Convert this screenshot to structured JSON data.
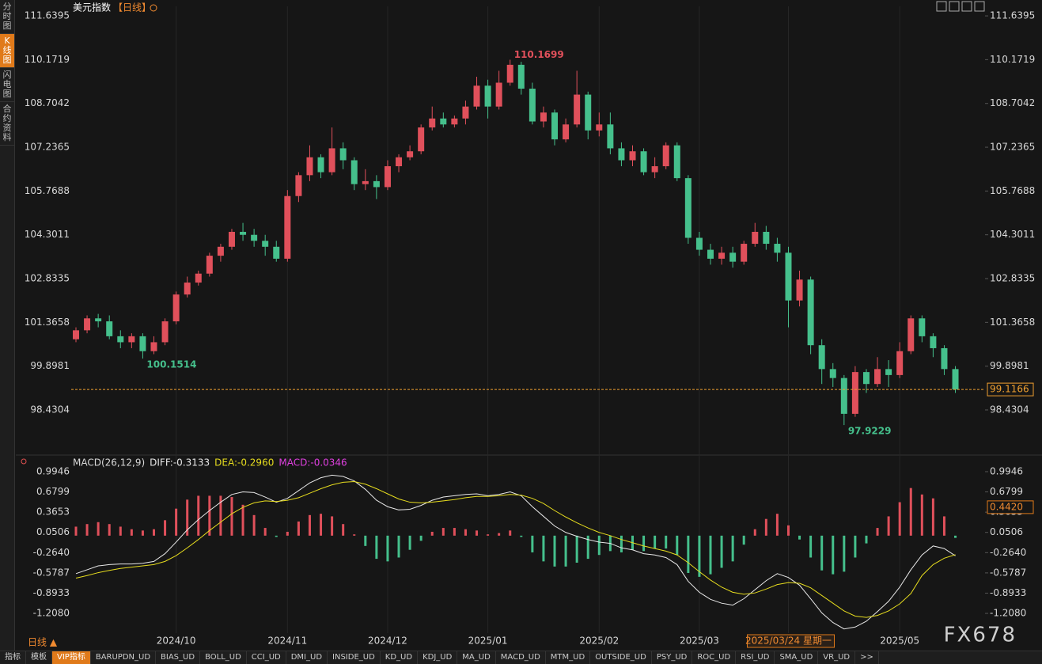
{
  "ui": {
    "sidebar": [
      "分时图",
      "K线图",
      "闪电图",
      "合约资料"
    ],
    "period": "日线 ▲",
    "watermark": "FX678",
    "toolbar": [
      "指标",
      "模板",
      "VIP指标",
      "BARUPDN_UD",
      "BIAS_UD",
      "BOLL_UD",
      "CCI_UD",
      "DMI_UD",
      "INSIDE_UD",
      "KD_UD",
      "KDJ_UD",
      "MA_UD",
      "MACD_UD",
      "MTM_UD",
      "OUTSIDE_UD",
      "PSY_UD",
      "ROC_UD",
      "RSI_UD",
      "SMA_UD",
      "VR_UD",
      ">>"
    ]
  },
  "chart_data": [
    {
      "type": "candlestick",
      "title": "美元指数",
      "subtitle": "【日线】",
      "categories": [
        null,
        null,
        null,
        null,
        null,
        null,
        null,
        null,
        null,
        "2024/10",
        null,
        null,
        null,
        null,
        null,
        null,
        null,
        null,
        null,
        "2024/11",
        null,
        null,
        null,
        null,
        null,
        null,
        null,
        null,
        "2024/12",
        null,
        null,
        null,
        null,
        null,
        null,
        null,
        null,
        "2025/01",
        null,
        null,
        null,
        null,
        null,
        null,
        null,
        null,
        null,
        "2025/02",
        null,
        null,
        null,
        null,
        null,
        null,
        null,
        null,
        "2025/03",
        null,
        null,
        null,
        null,
        null,
        null,
        null,
        "2025/03/24 星期一",
        null,
        null,
        null,
        null,
        null,
        null,
        null,
        null,
        null,
        "2025/05",
        null,
        null,
        null,
        null,
        null
      ],
      "open": [
        100.8,
        101.1,
        101.5,
        101.4,
        100.9,
        100.7,
        100.9,
        100.4,
        100.7,
        101.4,
        102.3,
        102.7,
        103.0,
        103.6,
        103.9,
        104.4,
        104.3,
        104.1,
        103.9,
        103.5,
        105.6,
        106.3,
        106.9,
        106.4,
        107.2,
        106.8,
        106.0,
        106.1,
        105.9,
        106.6,
        106.9,
        107.1,
        107.9,
        108.2,
        108.0,
        108.2,
        108.6,
        109.3,
        108.6,
        109.4,
        110.0,
        109.2,
        108.1,
        108.4,
        107.5,
        108.0,
        109.0,
        107.8,
        108.0,
        107.2,
        106.8,
        107.1,
        106.4,
        106.6,
        107.3,
        106.2,
        104.2,
        103.8,
        103.5,
        103.7,
        103.4,
        104.0,
        104.4,
        104.0,
        103.7,
        102.1,
        102.8,
        100.6,
        99.8,
        99.5,
        98.3,
        99.7,
        99.3,
        99.8,
        99.6,
        100.4,
        101.5,
        100.9,
        100.5,
        99.8
      ],
      "high": [
        101.2,
        101.6,
        101.65,
        101.6,
        101.1,
        101.0,
        101.0,
        100.9,
        101.5,
        102.4,
        102.9,
        103.1,
        103.7,
        104.0,
        104.5,
        104.7,
        104.5,
        104.3,
        104.1,
        105.8,
        106.4,
        107.3,
        107.0,
        107.9,
        107.4,
        106.9,
        106.5,
        106.3,
        106.8,
        107.0,
        107.3,
        108.0,
        108.6,
        108.4,
        108.3,
        108.8,
        109.6,
        109.5,
        109.8,
        110.1699,
        110.1,
        109.4,
        108.6,
        108.5,
        108.2,
        109.8,
        109.1,
        108.4,
        108.4,
        107.4,
        107.3,
        107.2,
        106.9,
        107.4,
        107.4,
        106.3,
        104.4,
        104.0,
        103.9,
        103.9,
        104.1,
        104.7,
        104.6,
        104.2,
        103.9,
        103.1,
        102.9,
        100.8,
        100.0,
        99.6,
        99.9,
        99.8,
        100.2,
        100.1,
        100.7,
        101.6,
        101.6,
        101.0,
        100.6,
        99.9
      ],
      "low": [
        100.7,
        101.0,
        101.2,
        100.8,
        100.5,
        100.5,
        100.1514,
        100.3,
        100.6,
        101.3,
        102.2,
        102.6,
        102.9,
        103.4,
        103.8,
        104.1,
        103.9,
        103.6,
        103.4,
        103.4,
        105.4,
        106.1,
        106.2,
        106.3,
        106.5,
        105.8,
        105.8,
        105.5,
        105.8,
        106.4,
        106.8,
        107.0,
        107.8,
        107.9,
        107.9,
        108.0,
        108.5,
        108.2,
        108.5,
        109.3,
        109.0,
        108.0,
        107.9,
        107.3,
        107.4,
        107.9,
        107.5,
        107.6,
        107.0,
        106.6,
        106.6,
        106.3,
        106.2,
        106.5,
        106.1,
        104.0,
        103.6,
        103.3,
        103.3,
        103.2,
        103.3,
        103.9,
        103.8,
        103.4,
        101.2,
        101.9,
        100.3,
        99.3,
        99.2,
        97.9229,
        98.2,
        99.0,
        99.2,
        99.2,
        99.5,
        100.3,
        100.7,
        100.2,
        99.6,
        99.0
      ],
      "close": [
        101.1,
        101.5,
        101.4,
        100.9,
        100.7,
        100.9,
        100.4,
        100.7,
        101.4,
        102.3,
        102.7,
        103.0,
        103.6,
        103.9,
        104.4,
        104.3,
        104.1,
        103.9,
        103.5,
        105.6,
        106.3,
        106.9,
        106.4,
        107.2,
        106.8,
        106.0,
        106.1,
        105.9,
        106.6,
        106.9,
        107.1,
        107.9,
        108.2,
        108.0,
        108.2,
        108.6,
        109.3,
        108.6,
        109.4,
        110.0,
        109.2,
        108.1,
        108.4,
        107.5,
        108.0,
        109.0,
        107.8,
        108.0,
        107.2,
        106.8,
        107.1,
        106.4,
        106.6,
        107.3,
        106.2,
        104.2,
        103.8,
        103.5,
        103.7,
        103.4,
        104.0,
        104.4,
        104.0,
        103.7,
        102.1,
        102.8,
        100.6,
        99.8,
        99.5,
        98.3,
        99.7,
        99.3,
        99.8,
        99.6,
        100.4,
        101.5,
        100.9,
        100.5,
        99.8,
        99.1166
      ],
      "extreme_labels": [
        110.1699,
        100.1514,
        97.9229
      ],
      "up_color": "#e0505b",
      "down_color": "#45c08c",
      "last_line_color": "#f0a030",
      "ylim": [
        97.05,
        111.96
      ],
      "yticks": [
        111.6395,
        110.1719,
        108.7042,
        107.2365,
        105.7688,
        104.3011,
        102.8335,
        101.3658,
        99.8981,
        98.4304
      ]
    },
    {
      "type": "macd",
      "title": "MACD(26,12,9)",
      "series": [
        {
          "name": "DIFF:-0.3133",
          "color": "#e8e8e8",
          "values": [
            -0.59,
            -0.53,
            -0.47,
            -0.45,
            -0.44,
            -0.44,
            -0.43,
            -0.4,
            -0.28,
            -0.1,
            0.09,
            0.25,
            0.39,
            0.52,
            0.64,
            0.68,
            0.67,
            0.6,
            0.52,
            0.58,
            0.7,
            0.82,
            0.9,
            0.94,
            0.92,
            0.85,
            0.72,
            0.55,
            0.45,
            0.4,
            0.41,
            0.47,
            0.55,
            0.6,
            0.62,
            0.64,
            0.65,
            0.62,
            0.64,
            0.68,
            0.62,
            0.45,
            0.3,
            0.15,
            0.05,
            -0.01,
            -0.06,
            -0.1,
            -0.12,
            -0.19,
            -0.22,
            -0.28,
            -0.3,
            -0.34,
            -0.45,
            -0.71,
            -0.88,
            -0.99,
            -1.05,
            -1.08,
            -0.98,
            -0.84,
            -0.7,
            -0.59,
            -0.65,
            -0.77,
            -0.98,
            -1.2,
            -1.35,
            -1.45,
            -1.42,
            -1.33,
            -1.18,
            -1.02,
            -0.8,
            -0.53,
            -0.3,
            -0.16,
            -0.2,
            -0.3133
          ]
        },
        {
          "name": "DEA:-0.2960",
          "color": "#e6dc1e",
          "values": [
            -0.66,
            -0.62,
            -0.575,
            -0.54,
            -0.51,
            -0.49,
            -0.47,
            -0.45,
            -0.4,
            -0.31,
            -0.19,
            -0.06,
            0.08,
            0.21,
            0.34,
            0.44,
            0.51,
            0.54,
            0.53,
            0.55,
            0.59,
            0.66,
            0.73,
            0.79,
            0.83,
            0.84,
            0.8,
            0.73,
            0.65,
            0.57,
            0.52,
            0.51,
            0.52,
            0.54,
            0.56,
            0.59,
            0.61,
            0.61,
            0.62,
            0.64,
            0.63,
            0.58,
            0.5,
            0.39,
            0.29,
            0.2,
            0.12,
            0.05,
            0.0,
            -0.06,
            -0.11,
            -0.16,
            -0.2,
            -0.24,
            -0.3,
            -0.42,
            -0.56,
            -0.69,
            -0.8,
            -0.88,
            -0.91,
            -0.89,
            -0.83,
            -0.76,
            -0.73,
            -0.74,
            -0.81,
            -0.93,
            -1.05,
            -1.17,
            -1.25,
            -1.27,
            -1.24,
            -1.17,
            -1.06,
            -0.9,
            -0.62,
            -0.45,
            -0.35,
            -0.296
          ]
        }
      ],
      "histogram": {
        "name": "MACD:-0.0346",
        "color": "#e040e0",
        "up_color": "#e0505b",
        "down_color": "#45c08c",
        "values": [
          0.14,
          0.18,
          0.21,
          0.18,
          0.14,
          0.1,
          0.08,
          0.1,
          0.24,
          0.42,
          0.56,
          0.62,
          0.62,
          0.62,
          0.6,
          0.48,
          0.32,
          0.12,
          -0.02,
          0.06,
          0.22,
          0.32,
          0.34,
          0.3,
          0.18,
          0.02,
          -0.16,
          -0.36,
          -0.4,
          -0.34,
          -0.22,
          -0.08,
          0.06,
          0.12,
          0.12,
          0.1,
          0.08,
          0.02,
          0.04,
          0.08,
          -0.02,
          -0.26,
          -0.4,
          -0.48,
          -0.48,
          -0.42,
          -0.36,
          -0.3,
          -0.24,
          -0.26,
          -0.22,
          -0.24,
          -0.2,
          -0.2,
          -0.3,
          -0.58,
          -0.64,
          -0.6,
          -0.5,
          -0.4,
          -0.14,
          0.1,
          0.26,
          0.34,
          0.16,
          -0.06,
          -0.34,
          -0.54,
          -0.6,
          -0.56,
          -0.34,
          -0.12,
          0.12,
          0.3,
          0.52,
          0.74,
          0.64,
          0.58,
          0.3,
          -0.0346
        ]
      },
      "cursor_value": {
        "value": 0.442,
        "label": "0.4420"
      },
      "ylim": [
        -1.515,
        1.068
      ],
      "yticks": [
        0.9946,
        0.6799,
        0.3653,
        0.0506,
        {
          "value": -0.264,
          "label": "-0.2640"
        },
        -0.5787,
        -0.8933,
        {
          "value": -1.208,
          "label": "-1.2080"
        }
      ]
    }
  ]
}
